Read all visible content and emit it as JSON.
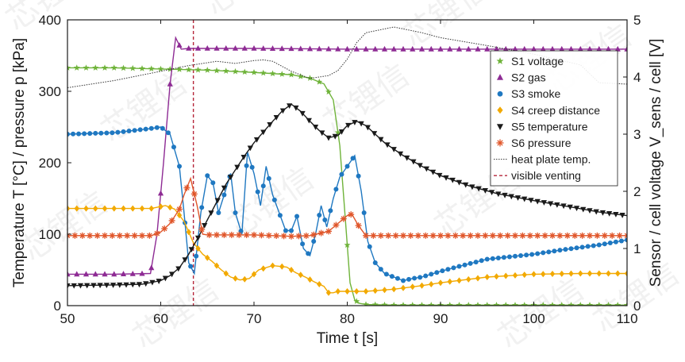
{
  "chart_data": {
    "type": "line",
    "xlabel": "Time t [s]",
    "ylabel_left": "Temperature T [°C] / pressure p [kPa]",
    "ylabel_right": "Sensor / cell voltage V_sens / cell [V]",
    "xlim": [
      50,
      110
    ],
    "ylim_left": [
      0,
      400
    ],
    "ylim_right": [
      0,
      5
    ],
    "xticks": [
      50,
      60,
      70,
      80,
      90,
      100,
      110
    ],
    "yticks_left": [
      0,
      100,
      200,
      300,
      400
    ],
    "yticks_right": [
      0,
      1,
      2,
      3,
      4,
      5
    ],
    "grid": false,
    "legend_position": "upper right",
    "watermark": "芯锂信",
    "vline": {
      "x": 63.5,
      "color": "#b5263a"
    },
    "series": [
      {
        "name": "S1 voltage",
        "color": "#6fb33a",
        "marker": "star",
        "axis": "right",
        "dx": 1,
        "x": [
          50,
          55,
          60,
          65,
          70,
          74,
          76,
          77.5,
          78.5,
          79.2,
          79.8,
          80.3,
          80.8,
          81.3,
          82,
          85,
          90,
          95,
          100,
          105,
          110
        ],
        "y": [
          4.16,
          4.16,
          4.14,
          4.12,
          4.08,
          4.04,
          3.98,
          3.88,
          3.6,
          2.8,
          1.5,
          0.4,
          0.1,
          0.04,
          0.02,
          0.01,
          0.01,
          0.01,
          0.01,
          0.01,
          0.01
        ]
      },
      {
        "name": "S2 gas",
        "color": "#8e2b94",
        "marker": "triangle-up",
        "axis": "left",
        "dx": 1,
        "x": [
          50,
          55,
          58.9,
          59.6,
          60.3,
          61,
          61.6,
          62.2,
          63,
          70,
          80,
          90,
          100,
          110
        ],
        "y": [
          44,
          44,
          45,
          100,
          200,
          310,
          375,
          359,
          360,
          360,
          359,
          359,
          359,
          359
        ]
      },
      {
        "name": "S3 smoke",
        "color": "#1f78c1",
        "marker": "circle",
        "axis": "left",
        "dx": 0.6,
        "x": [
          50,
          55,
          59,
          60,
          61,
          62,
          62.5,
          63,
          63.6,
          64.3,
          65,
          65.6,
          66.2,
          66.8,
          67.5,
          68,
          68.7,
          69.3,
          70,
          70.7,
          71.3,
          72,
          72.7,
          73.4,
          74,
          74.6,
          75.3,
          76,
          76.6,
          77.2,
          77.8,
          78.5,
          79.2,
          80,
          80.8,
          81.5,
          82.2,
          83,
          84,
          85,
          86,
          87,
          88,
          90,
          92,
          95,
          100,
          103,
          107,
          110
        ],
        "y": [
          240,
          242,
          248,
          250,
          240,
          195,
          130,
          60,
          45,
          130,
          182,
          172,
          130,
          155,
          185,
          130,
          100,
          215,
          185,
          140,
          195,
          155,
          130,
          105,
          105,
          125,
          80,
          70,
          100,
          140,
          110,
          150,
          180,
          195,
          210,
          160,
          90,
          60,
          45,
          40,
          35,
          38,
          40,
          48,
          55,
          65,
          72,
          78,
          85,
          92
        ]
      },
      {
        "name": "S4 creep distance",
        "color": "#f2a900",
        "marker": "diamond",
        "axis": "left",
        "dx": 1,
        "x": [
          50,
          55,
          59,
          60.5,
          61.5,
          62.5,
          63.5,
          64.5,
          65.5,
          66.5,
          67.5,
          68.5,
          69.5,
          70.5,
          72,
          73.5,
          74.5,
          75.5,
          76.5,
          77.5,
          78,
          78.5,
          79,
          80,
          82,
          85,
          88,
          90,
          95,
          100,
          105,
          110
        ],
        "y": [
          136,
          136,
          136,
          140,
          135,
          118,
          88,
          72,
          62,
          50,
          40,
          36,
          38,
          50,
          56,
          54,
          46,
          40,
          33,
          27,
          18,
          18,
          20,
          20,
          20,
          23,
          28,
          32,
          40,
          44,
          45,
          45
        ]
      },
      {
        "name": "S5 temperature",
        "color": "#1a1a1a",
        "marker": "triangle-down",
        "axis": "left",
        "dx": 0.7,
        "x": [
          50,
          55,
          58,
          60,
          61,
          62,
          63,
          64,
          65,
          66,
          67,
          68,
          69,
          70,
          71,
          72,
          73,
          74,
          75,
          76,
          77,
          78,
          79,
          80,
          81,
          82,
          83,
          84,
          86,
          88,
          90,
          93,
          96,
          100,
          104,
          107,
          110
        ],
        "y": [
          28,
          29,
          30,
          35,
          42,
          53,
          72,
          95,
          120,
          145,
          170,
          190,
          210,
          228,
          243,
          258,
          272,
          282,
          272,
          258,
          245,
          235,
          238,
          252,
          258,
          252,
          240,
          228,
          210,
          195,
          182,
          168,
          157,
          147,
          138,
          131,
          126
        ]
      },
      {
        "name": "S6 pressure",
        "color": "#e0562a",
        "marker": "asterisk",
        "axis": "left",
        "dx": 0.8,
        "x": [
          50,
          55,
          59,
          60,
          61,
          62,
          62.5,
          63.2,
          63.9,
          64.5,
          65,
          70,
          74,
          76,
          78,
          79,
          80,
          80.5,
          81.2,
          82,
          85,
          90,
          95,
          100,
          105,
          110
        ],
        "y": [
          98,
          98,
          98,
          103,
          115,
          135,
          155,
          178,
          140,
          100,
          99,
          99,
          97,
          98,
          104,
          115,
          126,
          128,
          112,
          98,
          98,
          98,
          98,
          98,
          98,
          98
        ]
      },
      {
        "name": "heat plate temp.",
        "color": "#333333",
        "marker": "none",
        "axis": "left",
        "style": "dotted",
        "x": [
          50,
          55,
          60,
          63,
          66,
          68,
          70,
          71,
          72,
          73,
          74,
          76,
          78,
          79,
          80,
          81,
          82,
          85,
          88,
          90,
          95,
          100,
          105,
          107,
          110
        ],
        "y": [
          305,
          315,
          328,
          336,
          342,
          339,
          343,
          344,
          342,
          335,
          328,
          318,
          322,
          329,
          345,
          368,
          382,
          390,
          382,
          375,
          364,
          352,
          337,
          312,
          310
        ]
      }
    ],
    "legend_entries": [
      {
        "label": "S1 voltage",
        "color": "#6fb33a",
        "marker": "star"
      },
      {
        "label": "S2 gas",
        "color": "#8e2b94",
        "marker": "triangle-up"
      },
      {
        "label": "S3 smoke",
        "color": "#1f78c1",
        "marker": "circle"
      },
      {
        "label": "S4 creep distance",
        "color": "#f2a900",
        "marker": "diamond"
      },
      {
        "label": "S5 temperature",
        "color": "#1a1a1a",
        "marker": "triangle-down"
      },
      {
        "label": "S6 pressure",
        "color": "#e0562a",
        "marker": "asterisk"
      },
      {
        "label": "heat plate temp.",
        "color": "#333333",
        "marker": "dotted-line"
      },
      {
        "label": "visible venting",
        "color": "#b5263a",
        "marker": "dashed-line"
      }
    ]
  }
}
